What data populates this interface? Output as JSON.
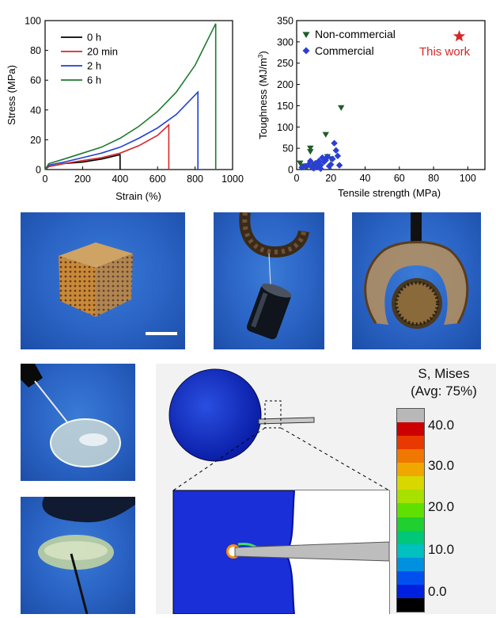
{
  "chart_data": [
    {
      "type": "line",
      "xlabel": "Strain (%)",
      "ylabel": "Stress (MPa)",
      "xlim": [
        0,
        1000
      ],
      "ylim": [
        0,
        100
      ],
      "xticks": [
        0,
        200,
        400,
        600,
        800,
        1000
      ],
      "yticks": [
        0,
        20,
        40,
        60,
        80,
        100
      ],
      "legend_position": "top-left",
      "grid": false,
      "series": [
        {
          "name": "0 h",
          "color": "#000000",
          "x": [
            0,
            20,
            100,
            200,
            300,
            400,
            400
          ],
          "y": [
            0,
            2,
            4,
            5,
            7,
            10,
            0
          ]
        },
        {
          "name": "20 min",
          "color": "#d62728",
          "x": [
            0,
            20,
            100,
            200,
            300,
            400,
            500,
            600,
            660,
            660
          ],
          "y": [
            0,
            2,
            4,
            6,
            8,
            11,
            16,
            23,
            30,
            0
          ]
        },
        {
          "name": "2 h",
          "color": "#1f3fd6",
          "x": [
            0,
            20,
            100,
            200,
            300,
            400,
            500,
            600,
            700,
            815,
            815
          ],
          "y": [
            0,
            3,
            5,
            8,
            11,
            15,
            21,
            28,
            37,
            52,
            0
          ]
        },
        {
          "name": "6 h",
          "color": "#1e7a2e",
          "x": [
            0,
            20,
            100,
            200,
            300,
            400,
            500,
            600,
            700,
            800,
            910,
            910
          ],
          "y": [
            0,
            4,
            7,
            11,
            15,
            21,
            29,
            39,
            52,
            70,
            98,
            0
          ]
        }
      ]
    },
    {
      "type": "scatter",
      "xlabel": "Tensile strength (MPa)",
      "ylabel": "Toughness (MJ/m",
      "ylabel_sup": "3",
      "ylabel_close": ")",
      "xlim": [
        0,
        110
      ],
      "ylim": [
        0,
        350
      ],
      "xticks": [
        0,
        20,
        40,
        60,
        80,
        100
      ],
      "yticks": [
        0,
        50,
        100,
        150,
        200,
        250,
        300,
        350
      ],
      "legend_position": "top",
      "series": [
        {
          "name": "Non-commercial",
          "marker": "triangle-down",
          "color": "#1e5c2a",
          "points": [
            [
              2,
              15
            ],
            [
              4,
              8
            ],
            [
              8,
              50
            ],
            [
              8,
              42
            ],
            [
              10,
              12
            ],
            [
              17,
              82
            ],
            [
              18,
              30
            ],
            [
              26,
              145
            ],
            [
              6,
              5
            ],
            [
              12,
              8
            ],
            [
              20,
              25
            ]
          ]
        },
        {
          "name": "Commercial",
          "marker": "diamond",
          "color": "#2a3fd6",
          "points": [
            [
              3,
              5
            ],
            [
              5,
              8
            ],
            [
              7,
              12
            ],
            [
              8,
              20
            ],
            [
              10,
              3
            ],
            [
              11,
              15
            ],
            [
              12,
              6
            ],
            [
              13,
              20
            ],
            [
              14,
              10
            ],
            [
              15,
              28
            ],
            [
              16,
              18
            ],
            [
              17,
              22
            ],
            [
              18,
              30
            ],
            [
              19,
              8
            ],
            [
              20,
              12
            ],
            [
              21,
              25
            ],
            [
              22,
              62
            ],
            [
              23,
              45
            ],
            [
              24,
              32
            ],
            [
              25,
              10
            ],
            [
              9,
              5
            ],
            [
              14,
              2
            ]
          ]
        },
        {
          "name": "This work",
          "marker": "star",
          "color": "#d62728",
          "points": [
            [
              95,
              313
            ]
          ]
        }
      ]
    }
  ],
  "scale_bar": {
    "title_line1": "S, Mises",
    "title_line2": "(Avg: 75%)",
    "labels": [
      "40.0",
      "30.0",
      "20.0",
      "10.0",
      "0.0"
    ],
    "colors": [
      "#b8b8b8",
      "#cc0000",
      "#e83a00",
      "#f07800",
      "#f0a800",
      "#d8d800",
      "#a8e000",
      "#60e000",
      "#20d030",
      "#00c878",
      "#00c0c0",
      "#0090e0",
      "#0050f0",
      "#0020e0",
      "#000000"
    ]
  }
}
